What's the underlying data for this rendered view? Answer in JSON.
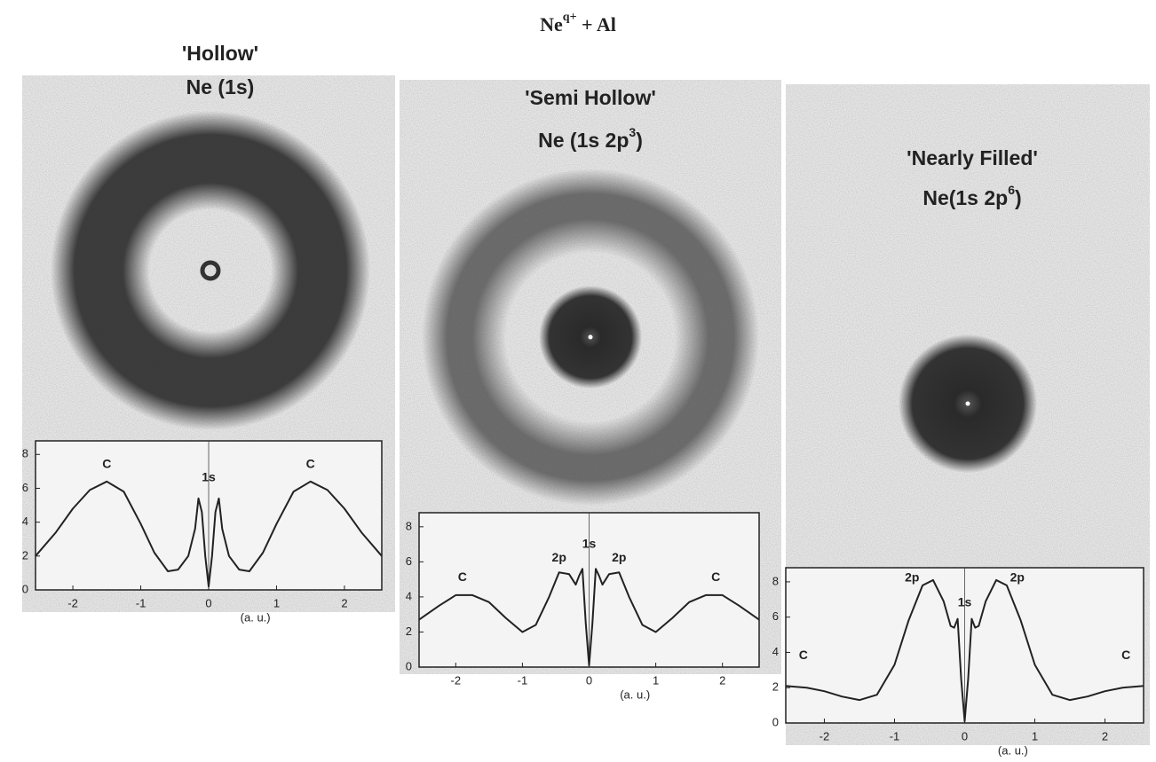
{
  "title": {
    "text": "Ne",
    "sup": "q+",
    "after": " + Al"
  },
  "chart_data": [
    {
      "type": "line",
      "title": "'Hollow'",
      "subtitle": {
        "text": "Ne (1s)"
      },
      "x": [
        -2.55,
        -2.25,
        -2,
        -1.75,
        -1.5,
        -1.25,
        -1,
        -0.8,
        -0.6,
        -0.45,
        -0.3,
        -0.2,
        -0.15,
        -0.1,
        -0.05,
        0,
        0.05,
        0.1,
        0.15,
        0.2,
        0.3,
        0.45,
        0.6,
        0.8,
        1,
        1.25,
        1.5,
        1.75,
        2,
        2.25,
        2.55
      ],
      "series": [
        {
          "color": "#222222",
          "values": [
            2.0,
            3.4,
            4.8,
            5.9,
            6.4,
            5.8,
            3.9,
            2.2,
            1.1,
            1.2,
            2.0,
            3.6,
            5.4,
            4.6,
            2.0,
            0.2,
            2.0,
            4.6,
            5.4,
            3.6,
            2.0,
            1.2,
            1.1,
            2.2,
            3.9,
            5.8,
            6.4,
            5.9,
            4.8,
            3.4,
            2.0
          ]
        }
      ],
      "xlim": [
        -2.55,
        2.55
      ],
      "ylim": [
        0,
        8.8
      ],
      "xticks": [
        -2,
        -1,
        0,
        1,
        2
      ],
      "yticks": [
        0,
        2,
        4,
        6,
        8
      ],
      "xlabel": "(a. u.)",
      "annotations": [
        {
          "text": "C",
          "x": -1.5,
          "y": 7.4
        },
        {
          "text": "1s",
          "x": 0,
          "y": 6.6
        },
        {
          "text": "C",
          "x": 1.5,
          "y": 7.4
        }
      ]
    },
    {
      "type": "line",
      "title": "'Semi Hollow'",
      "subtitle": {
        "text": "Ne (1s 2p",
        "sup": "3",
        "after": ")"
      },
      "x": [
        -2.55,
        -2.25,
        -2,
        -1.75,
        -1.5,
        -1.25,
        -1,
        -0.8,
        -0.6,
        -0.45,
        -0.3,
        -0.2,
        -0.15,
        -0.1,
        -0.05,
        0,
        0.05,
        0.1,
        0.15,
        0.2,
        0.3,
        0.45,
        0.6,
        0.8,
        1,
        1.25,
        1.5,
        1.75,
        2,
        2.25,
        2.55
      ],
      "series": [
        {
          "color": "#222222",
          "values": [
            2.7,
            3.5,
            4.1,
            4.1,
            3.7,
            2.8,
            2.0,
            2.4,
            4.0,
            5.4,
            5.3,
            4.7,
            5.2,
            5.6,
            2.5,
            0.1,
            2.5,
            5.6,
            5.2,
            4.7,
            5.3,
            5.4,
            4.0,
            2.4,
            2.0,
            2.8,
            3.7,
            4.1,
            4.1,
            3.5,
            2.7
          ]
        }
      ],
      "xlim": [
        -2.55,
        2.55
      ],
      "ylim": [
        0,
        8.8
      ],
      "xticks": [
        -2,
        -1,
        0,
        1,
        2
      ],
      "yticks": [
        0,
        2,
        4,
        6,
        8
      ],
      "xlabel": "(a. u.)",
      "annotations": [
        {
          "text": "C",
          "x": -1.9,
          "y": 5.1
        },
        {
          "text": "2p",
          "x": -0.45,
          "y": 6.2
        },
        {
          "text": "1s",
          "x": 0,
          "y": 7.0
        },
        {
          "text": "2p",
          "x": 0.45,
          "y": 6.2
        },
        {
          "text": "C",
          "x": 1.9,
          "y": 5.1
        }
      ]
    },
    {
      "type": "line",
      "title": "'Nearly Filled'",
      "subtitle": {
        "text": "Ne(1s 2p",
        "sup": "6",
        "after": ")"
      },
      "x": [
        -2.55,
        -2.25,
        -2,
        -1.75,
        -1.5,
        -1.25,
        -1,
        -0.8,
        -0.6,
        -0.45,
        -0.3,
        -0.2,
        -0.15,
        -0.1,
        -0.05,
        0,
        0.05,
        0.1,
        0.15,
        0.2,
        0.3,
        0.45,
        0.6,
        0.8,
        1,
        1.25,
        1.5,
        1.75,
        2,
        2.25,
        2.55
      ],
      "series": [
        {
          "color": "#222222",
          "values": [
            2.1,
            2.0,
            1.8,
            1.5,
            1.3,
            1.6,
            3.3,
            5.8,
            7.8,
            8.1,
            6.9,
            5.5,
            5.4,
            5.9,
            2.5,
            0.1,
            2.5,
            5.9,
            5.4,
            5.5,
            6.9,
            8.1,
            7.8,
            5.8,
            3.3,
            1.6,
            1.3,
            1.5,
            1.8,
            2.0,
            2.1
          ]
        }
      ],
      "xlim": [
        -2.55,
        2.55
      ],
      "ylim": [
        0,
        8.8
      ],
      "xticks": [
        -2,
        -1,
        0,
        1,
        2
      ],
      "yticks": [
        0,
        2,
        4,
        6,
        8
      ],
      "xlabel": "(a. u.)",
      "annotations": [
        {
          "text": "C",
          "x": -2.3,
          "y": 3.8
        },
        {
          "text": "2p",
          "x": -0.75,
          "y": 8.2
        },
        {
          "text": "1s",
          "x": 0,
          "y": 6.8
        },
        {
          "text": "2p",
          "x": 0.75,
          "y": 8.2
        },
        {
          "text": "C",
          "x": 2.3,
          "y": 3.8
        }
      ]
    }
  ]
}
